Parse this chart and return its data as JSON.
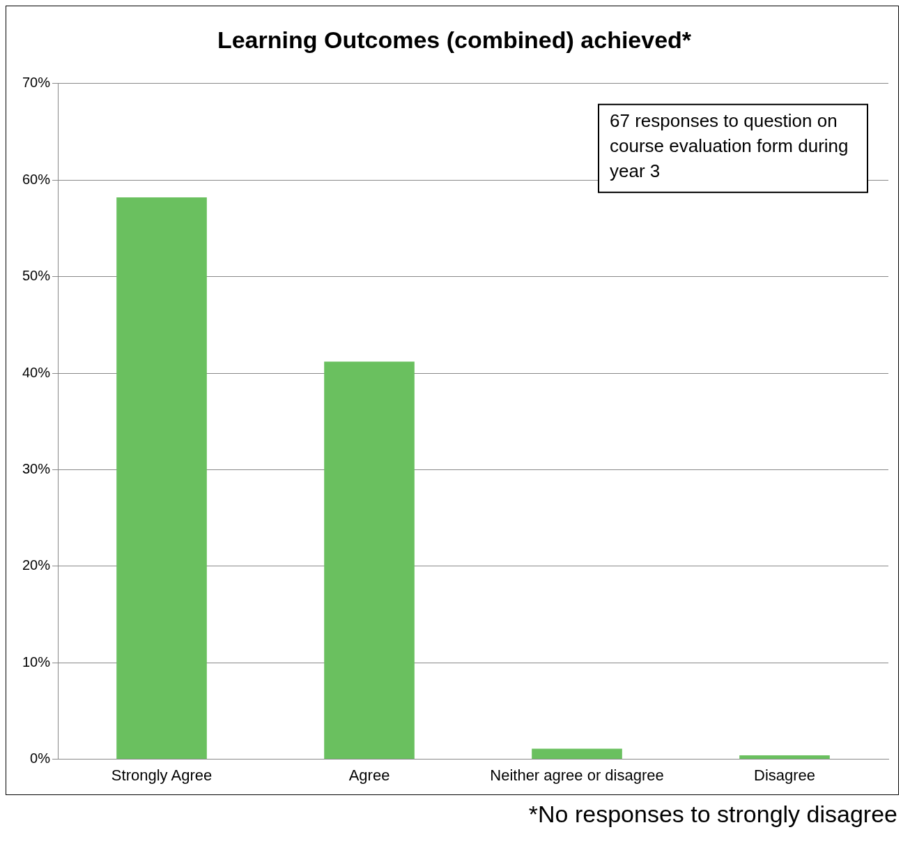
{
  "chart_data": {
    "type": "bar",
    "title": "Learning Outcomes (combined) achieved*",
    "categories": [
      "Strongly Agree",
      "Agree",
      "Neither agree or disagree",
      "Disagree"
    ],
    "values": [
      58.2,
      41.2,
      1.1,
      0.4
    ],
    "color": "#6ac05f",
    "ylim": [
      0,
      70
    ],
    "yticks": [
      {
        "value": 0,
        "label": "0%"
      },
      {
        "value": 10,
        "label": "10%"
      },
      {
        "value": 20,
        "label": "20%"
      },
      {
        "value": 30,
        "label": "30%"
      },
      {
        "value": 40,
        "label": "40%"
      },
      {
        "value": 50,
        "label": "50%"
      },
      {
        "value": 60,
        "label": "60%"
      },
      {
        "value": 70,
        "label": "70%"
      }
    ],
    "grid": "y",
    "legend": false,
    "annotations": [
      "67 responses to question on course evaluation form during year 3",
      "*No responses to strongly disagree"
    ]
  }
}
